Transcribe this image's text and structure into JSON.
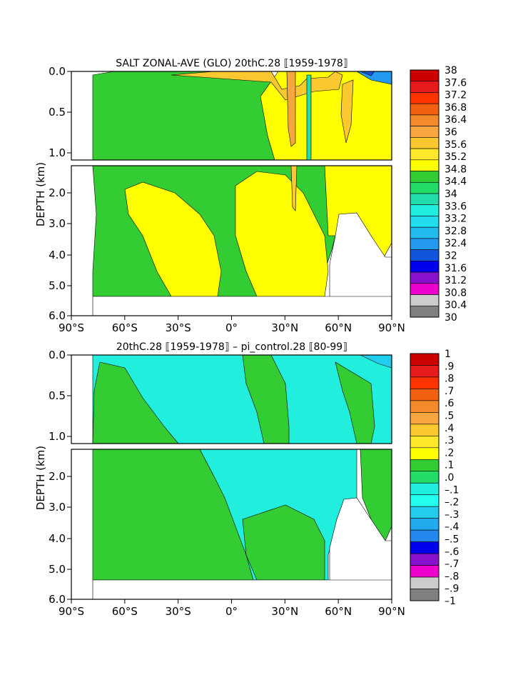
{
  "chart_data": [
    {
      "type": "heatmap",
      "title": "SALT ZONAL-AVE (GLO) 20thC.28 ⟦1959-1978⟧",
      "ylabel": "DEPTH (km)",
      "x_ticks": [
        "90°S",
        "60°S",
        "30°S",
        "0°",
        "30°N",
        "60°N",
        "90°N"
      ],
      "y_ticks_upper": [
        "0.0",
        "0.5",
        "1.0"
      ],
      "y_ticks_lower": [
        "2.0",
        "3.0",
        "4.0",
        "5.0",
        "6.0"
      ],
      "colorbar_labels": [
        "38",
        "37.6",
        "37.2",
        "36.8",
        "36.4",
        "36",
        "35.6",
        "35.2",
        "34.8",
        "34.4",
        "34",
        "33.6",
        "33.2",
        "32.8",
        "32.4",
        "32",
        "31.6",
        "31.2",
        "30.8",
        "30.4",
        "30"
      ],
      "colorbar_colors": [
        "#cc0000",
        "#e61a1a",
        "#ff3300",
        "#f06010",
        "#f58a2a",
        "#f7a640",
        "#fbc830",
        "#ffe82a",
        "#ffff00",
        "#33cc33",
        "#22dd66",
        "#22ddaa",
        "#22eedd",
        "#22ddee",
        "#22bbee",
        "#2299ee",
        "#1155dd",
        "#0000ee",
        "#8811cc",
        "#ee00cc",
        "#cccccc",
        "#808080"
      ],
      "lat_range": [
        -90,
        90
      ],
      "depth_range_km": [
        0,
        6
      ],
      "dominant_regions": [
        {
          "label": "34.4-34.8",
          "color": "#33cc33"
        },
        {
          "label": "34.8-35.2",
          "color": "#ffff00"
        },
        {
          "label": "35.2-35.6",
          "color": "#fbc830"
        },
        {
          "label": "35.6-36",
          "color": "#f7a640"
        }
      ]
    },
    {
      "type": "heatmap",
      "title": "20thC.28 ⟦1959-1978⟧ – pi_control.28 ⟦80-99⟧",
      "ylabel": "DEPTH (km)",
      "x_ticks": [
        "90°S",
        "60°S",
        "30°S",
        "0°",
        "30°N",
        "60°N",
        "90°N"
      ],
      "y_ticks_upper": [
        "0.0",
        "0.5",
        "1.0"
      ],
      "y_ticks_lower": [
        "2.0",
        "3.0",
        "4.0",
        "5.0",
        "6.0"
      ],
      "colorbar_labels": [
        "1",
        ".9",
        ".8",
        ".7",
        ".6",
        ".5",
        ".4",
        ".3",
        ".2",
        ".1",
        ".0",
        "–.1",
        "–.2",
        "–.3",
        "–.4",
        "–.5",
        "–.6",
        "–.7",
        "–.8",
        "–.9",
        "–1"
      ],
      "colorbar_colors": [
        "#cc0000",
        "#e61a1a",
        "#ff3300",
        "#f06010",
        "#f58a2a",
        "#f7a640",
        "#fbc830",
        "#ffe82a",
        "#ffff00",
        "#33cc33",
        "#22dd66",
        "#22eedd",
        "#22ffee",
        "#22ccee",
        "#22aaee",
        "#2288ee",
        "#0000ee",
        "#8811cc",
        "#ee00cc",
        "#cccccc",
        "#808080"
      ],
      "lat_range": [
        -90,
        90
      ],
      "depth_range_km": [
        0,
        6
      ],
      "dominant_regions": [
        {
          "label": "0 to .1",
          "color": "#33cc33"
        },
        {
          "label": "-.1 to 0",
          "color": "#22eedd"
        }
      ]
    }
  ]
}
